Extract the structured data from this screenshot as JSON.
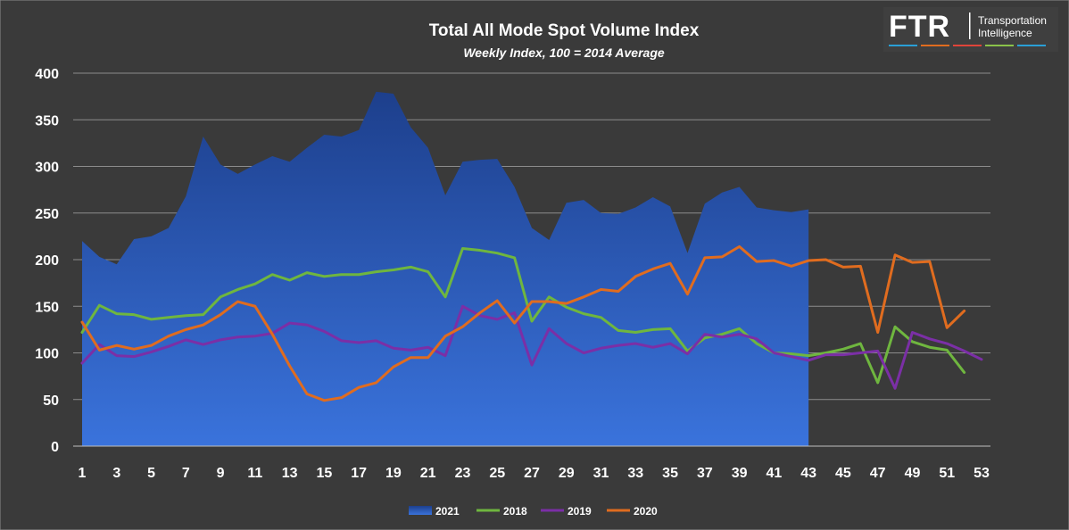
{
  "logo": {
    "mark": "FTR",
    "line1": "Transportation",
    "line2": "Intelligence",
    "stripe_colors": [
      "#2a9fd6",
      "#e06c1f",
      "#e0443a",
      "#8bc34a",
      "#2a9fd6"
    ]
  },
  "chart_data": {
    "type": "line",
    "title": "Total All Mode Spot Volume Index",
    "subtitle": "Weekly Index, 100 = 2014 Average",
    "xlabel": "",
    "ylabel": "",
    "xlim": [
      1,
      53
    ],
    "ylim": [
      0,
      400
    ],
    "x_ticks": [
      1,
      3,
      5,
      7,
      9,
      11,
      13,
      15,
      17,
      19,
      21,
      23,
      25,
      27,
      29,
      31,
      33,
      35,
      37,
      39,
      41,
      43,
      45,
      47,
      49,
      51,
      53
    ],
    "y_ticks": [
      0,
      50,
      100,
      150,
      200,
      250,
      300,
      350,
      400
    ],
    "grid": true,
    "legend_position": "bottom",
    "series": [
      {
        "name": "2021",
        "type": "area",
        "color": "#2e5db8",
        "x": [
          1,
          2,
          3,
          4,
          5,
          6,
          7,
          8,
          9,
          10,
          11,
          12,
          13,
          14,
          15,
          16,
          17,
          18,
          19,
          20,
          21,
          22,
          23,
          24,
          25,
          26,
          27,
          28,
          29,
          30,
          31,
          32,
          33,
          34,
          35,
          36,
          37,
          38,
          39,
          40,
          41,
          42,
          43
        ],
        "values": [
          220,
          203,
          195,
          222,
          225,
          234,
          268,
          332,
          302,
          292,
          302,
          311,
          305,
          320,
          334,
          332,
          339,
          380,
          378,
          342,
          320,
          269,
          305,
          307,
          308,
          278,
          234,
          221,
          261,
          264,
          250,
          249,
          256,
          267,
          257,
          207,
          260,
          272,
          278,
          256,
          253,
          251,
          254
        ]
      },
      {
        "name": "2018",
        "type": "line",
        "color": "#6fb63f",
        "x": [
          1,
          2,
          3,
          4,
          5,
          6,
          7,
          8,
          9,
          10,
          11,
          12,
          13,
          14,
          15,
          16,
          17,
          18,
          19,
          20,
          21,
          22,
          23,
          24,
          25,
          26,
          27,
          28,
          29,
          30,
          31,
          32,
          33,
          34,
          35,
          36,
          37,
          38,
          39,
          40,
          41,
          42,
          43,
          44,
          45,
          46,
          47,
          48,
          49,
          50,
          51,
          52
        ],
        "values": [
          122,
          151,
          142,
          141,
          136,
          138,
          140,
          141,
          160,
          168,
          174,
          184,
          178,
          186,
          182,
          184,
          184,
          187,
          189,
          192,
          187,
          160,
          212,
          210,
          207,
          202,
          134,
          160,
          149,
          142,
          138,
          124,
          122,
          125,
          126,
          102,
          116,
          120,
          126,
          110,
          100,
          99,
          97,
          100,
          104,
          110,
          68,
          128,
          112,
          106,
          103,
          79
        ]
      },
      {
        "name": "2019",
        "type": "line",
        "color": "#7b2fa6",
        "x": [
          1,
          2,
          3,
          4,
          5,
          6,
          7,
          8,
          9,
          10,
          11,
          12,
          13,
          14,
          15,
          16,
          17,
          18,
          19,
          20,
          21,
          22,
          23,
          24,
          25,
          26,
          27,
          28,
          29,
          30,
          31,
          32,
          33,
          34,
          35,
          36,
          37,
          38,
          39,
          40,
          41,
          42,
          43,
          44,
          45,
          46,
          47,
          48,
          49,
          50,
          51,
          52,
          53
        ],
        "values": [
          89,
          109,
          97,
          96,
          101,
          107,
          114,
          109,
          114,
          117,
          118,
          121,
          132,
          130,
          123,
          113,
          111,
          113,
          105,
          103,
          106,
          97,
          150,
          140,
          136,
          143,
          87,
          126,
          110,
          100,
          105,
          108,
          110,
          106,
          110,
          99,
          120,
          117,
          120,
          115,
          100,
          96,
          92,
          98,
          98,
          100,
          102,
          62,
          122,
          115,
          110,
          102,
          93
        ]
      },
      {
        "name": "2020",
        "type": "line",
        "color": "#e06c1f",
        "x": [
          1,
          2,
          3,
          4,
          5,
          6,
          7,
          8,
          9,
          10,
          11,
          12,
          13,
          14,
          15,
          16,
          17,
          18,
          19,
          20,
          21,
          22,
          23,
          24,
          25,
          26,
          27,
          28,
          29,
          30,
          31,
          32,
          33,
          34,
          35,
          36,
          37,
          38,
          39,
          40,
          41,
          42,
          43,
          44,
          45,
          46,
          47,
          48,
          49,
          50,
          51,
          52
        ],
        "values": [
          133,
          103,
          108,
          104,
          108,
          118,
          125,
          130,
          141,
          155,
          150,
          120,
          86,
          56,
          49,
          52,
          63,
          68,
          85,
          95,
          95,
          118,
          128,
          143,
          156,
          132,
          155,
          155,
          153,
          160,
          168,
          166,
          182,
          190,
          196,
          163,
          202,
          203,
          214,
          198,
          199,
          193,
          199,
          200,
          192,
          193,
          122,
          205,
          197,
          198,
          127,
          145
        ]
      }
    ]
  }
}
